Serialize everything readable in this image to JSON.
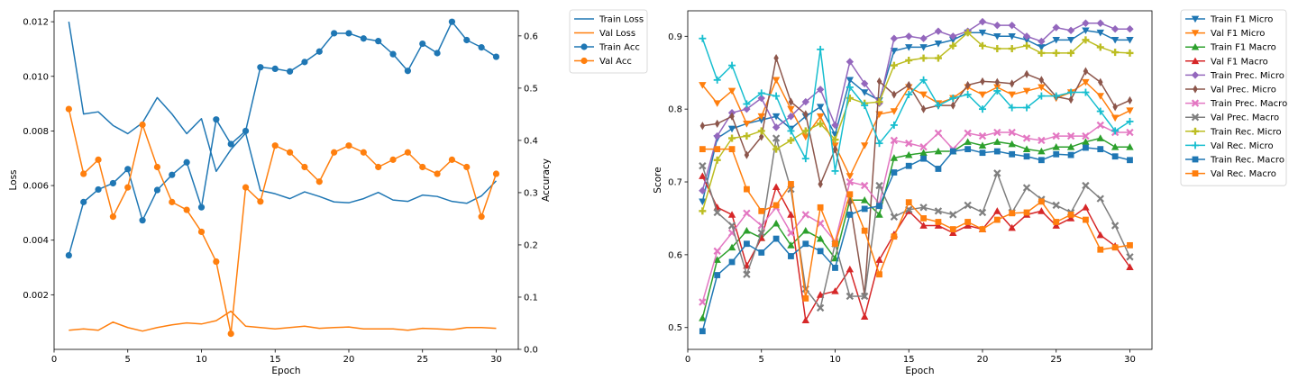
{
  "chart_data": [
    {
      "type": "line",
      "xlabel": "Epoch",
      "ylabel": "Loss",
      "ylabel_right": "Accuracy",
      "x": [
        1,
        2,
        3,
        4,
        5,
        6,
        7,
        8,
        9,
        10,
        11,
        12,
        13,
        14,
        15,
        16,
        17,
        18,
        19,
        20,
        21,
        22,
        23,
        24,
        25,
        26,
        27,
        28,
        29,
        30
      ],
      "xlim": [
        0,
        31.5
      ],
      "ylim": [
        0.0,
        0.0124
      ],
      "ylim_right": [
        0.0,
        0.648
      ],
      "xticks": [
        0,
        5,
        10,
        15,
        20,
        25,
        30
      ],
      "yticks": [
        0.002,
        0.004,
        0.006,
        0.008,
        0.01,
        0.012
      ],
      "ytick_labels": [
        "0.002",
        "0.004",
        "0.006",
        "0.008",
        "0.010",
        "0.012"
      ],
      "yticks_right": [
        0.0,
        0.1,
        0.2,
        0.3,
        0.4,
        0.5,
        0.6
      ],
      "ytick_labels_right": [
        "0.0",
        "0.1",
        "0.2",
        "0.3",
        "0.4",
        "0.5",
        "0.6"
      ],
      "legend_position": "outside right",
      "series": [
        {
          "name": "Train Loss",
          "axis": "left",
          "marker": "none",
          "color": "#1f77b4",
          "values": [
            0.012,
            0.00862,
            0.0087,
            0.0082,
            0.0079,
            0.0083,
            0.00922,
            0.00862,
            0.0079,
            0.00845,
            0.00652,
            0.00732,
            0.00792,
            0.00582,
            0.0057,
            0.00552,
            0.00577,
            0.0056,
            0.0054,
            0.00537,
            0.00552,
            0.00575,
            0.00547,
            0.00542,
            0.00565,
            0.0056,
            0.00542,
            0.00535,
            0.00562,
            0.00617
          ]
        },
        {
          "name": "Val Loss",
          "axis": "left",
          "marker": "none",
          "color": "#ff7f0e",
          "values": [
            0.0007,
            0.00075,
            0.0007,
            0.001,
            0.0008,
            0.00067,
            0.0008,
            0.0009,
            0.00097,
            0.00093,
            0.00105,
            0.0014,
            0.00085,
            0.0008,
            0.00075,
            0.0008,
            0.00085,
            0.00077,
            0.0008,
            0.00082,
            0.00075,
            0.00075,
            0.00075,
            0.0007,
            0.00077,
            0.00075,
            0.00072,
            0.0008,
            0.0008,
            0.00077
          ]
        },
        {
          "name": "Train Acc",
          "axis": "right",
          "marker": "circle",
          "color": "#1f77b4",
          "values": [
            0.18,
            0.282,
            0.306,
            0.318,
            0.345,
            0.247,
            0.305,
            0.334,
            0.358,
            0.272,
            0.44,
            0.393,
            0.418,
            0.54,
            0.537,
            0.532,
            0.55,
            0.57,
            0.605,
            0.605,
            0.595,
            0.59,
            0.565,
            0.533,
            0.585,
            0.567,
            0.627,
            0.592,
            0.578,
            0.56
          ]
        },
        {
          "name": "Val Acc",
          "axis": "right",
          "marker": "circle",
          "color": "#ff7f0e",
          "values": [
            0.46,
            0.336,
            0.363,
            0.254,
            0.31,
            0.43,
            0.349,
            0.282,
            0.267,
            0.225,
            0.168,
            0.03,
            0.31,
            0.283,
            0.39,
            0.377,
            0.349,
            0.321,
            0.377,
            0.39,
            0.377,
            0.349,
            0.363,
            0.377,
            0.349,
            0.336,
            0.363,
            0.349,
            0.254,
            0.336
          ]
        }
      ]
    },
    {
      "type": "line",
      "xlabel": "Epoch",
      "ylabel": "Score",
      "x": [
        1,
        2,
        3,
        4,
        5,
        6,
        7,
        8,
        9,
        10,
        11,
        12,
        13,
        14,
        15,
        16,
        17,
        18,
        19,
        20,
        21,
        22,
        23,
        24,
        25,
        26,
        27,
        28,
        29,
        30
      ],
      "xlim": [
        0,
        31.5
      ],
      "ylim": [
        0.47,
        0.935
      ],
      "xticks": [
        0,
        5,
        10,
        15,
        20,
        25,
        30
      ],
      "yticks": [
        0.5,
        0.6,
        0.7,
        0.8,
        0.9
      ],
      "ytick_labels": [
        "0.5",
        "0.6",
        "0.7",
        "0.8",
        "0.9"
      ],
      "legend_position": "outside right",
      "series": [
        {
          "name": "Train F1 Micro",
          "marker": "triangle-down",
          "color": "#1f77b4",
          "values": [
            0.673,
            0.76,
            0.773,
            0.78,
            0.785,
            0.79,
            0.773,
            0.79,
            0.803,
            0.765,
            0.84,
            0.823,
            0.812,
            0.88,
            0.885,
            0.885,
            0.89,
            0.895,
            0.905,
            0.905,
            0.9,
            0.9,
            0.895,
            0.885,
            0.895,
            0.895,
            0.908,
            0.905,
            0.895,
            0.895
          ]
        },
        {
          "name": "Val F1 Micro",
          "marker": "triangle-down",
          "color": "#ff7f0e",
          "values": [
            0.833,
            0.808,
            0.825,
            0.78,
            0.79,
            0.84,
            0.8,
            0.762,
            0.79,
            0.75,
            0.708,
            0.75,
            0.793,
            0.797,
            0.83,
            0.82,
            0.808,
            0.815,
            0.83,
            0.82,
            0.83,
            0.82,
            0.825,
            0.83,
            0.815,
            0.823,
            0.837,
            0.818,
            0.788,
            0.798
          ]
        },
        {
          "name": "Train F1 Macro",
          "marker": "triangle-up",
          "color": "#2ca02c",
          "values": [
            0.513,
            0.593,
            0.61,
            0.633,
            0.623,
            0.643,
            0.613,
            0.633,
            0.622,
            0.595,
            0.675,
            0.675,
            0.655,
            0.733,
            0.737,
            0.74,
            0.742,
            0.742,
            0.755,
            0.75,
            0.755,
            0.752,
            0.745,
            0.742,
            0.748,
            0.748,
            0.755,
            0.76,
            0.748,
            0.748
          ]
        },
        {
          "name": "Val F1 Macro",
          "marker": "triangle-up",
          "color": "#d62728",
          "values": [
            0.708,
            0.665,
            0.655,
            0.585,
            0.623,
            0.693,
            0.655,
            0.51,
            0.545,
            0.55,
            0.58,
            0.515,
            0.593,
            0.628,
            0.66,
            0.64,
            0.64,
            0.63,
            0.64,
            0.635,
            0.66,
            0.637,
            0.655,
            0.66,
            0.64,
            0.65,
            0.665,
            0.627,
            0.612,
            0.583
          ]
        },
        {
          "name": "Train Prec. Micro",
          "marker": "diamond",
          "color": "#9467bd",
          "values": [
            0.688,
            0.763,
            0.795,
            0.8,
            0.815,
            0.775,
            0.79,
            0.81,
            0.827,
            0.778,
            0.865,
            0.835,
            0.808,
            0.897,
            0.9,
            0.897,
            0.907,
            0.9,
            0.907,
            0.92,
            0.915,
            0.915,
            0.9,
            0.893,
            0.912,
            0.908,
            0.918,
            0.918,
            0.91,
            0.91
          ]
        },
        {
          "name": "Val Prec. Micro",
          "marker": "thin-diamond",
          "color": "#8c564b",
          "values": [
            0.777,
            0.78,
            0.79,
            0.737,
            0.762,
            0.87,
            0.81,
            0.793,
            0.697,
            0.745,
            0.672,
            0.545,
            0.838,
            0.82,
            0.833,
            0.8,
            0.805,
            0.805,
            0.833,
            0.838,
            0.837,
            0.835,
            0.848,
            0.84,
            0.817,
            0.813,
            0.852,
            0.837,
            0.803,
            0.812
          ]
        },
        {
          "name": "Train Prec. Macro",
          "marker": "x",
          "color": "#e377c2",
          "values": [
            0.535,
            0.605,
            0.63,
            0.657,
            0.64,
            0.665,
            0.63,
            0.655,
            0.643,
            0.618,
            0.7,
            0.695,
            0.67,
            0.757,
            0.753,
            0.748,
            0.767,
            0.745,
            0.767,
            0.763,
            0.768,
            0.768,
            0.76,
            0.757,
            0.763,
            0.763,
            0.763,
            0.778,
            0.768,
            0.768
          ]
        },
        {
          "name": "Val Prec. Macro",
          "marker": "x",
          "color": "#7f7f7f",
          "values": [
            0.722,
            0.658,
            0.64,
            0.573,
            0.63,
            0.76,
            0.69,
            0.553,
            0.527,
            0.615,
            0.543,
            0.543,
            0.695,
            0.652,
            0.662,
            0.665,
            0.66,
            0.655,
            0.668,
            0.658,
            0.712,
            0.658,
            0.692,
            0.676,
            0.668,
            0.658,
            0.695,
            0.677,
            0.64,
            0.597
          ]
        },
        {
          "name": "Train Rec. Micro",
          "marker": "plus-filled",
          "color": "#bcbd22",
          "values": [
            0.66,
            0.73,
            0.76,
            0.763,
            0.77,
            0.745,
            0.757,
            0.77,
            0.78,
            0.758,
            0.815,
            0.808,
            0.81,
            0.86,
            0.867,
            0.87,
            0.87,
            0.887,
            0.905,
            0.887,
            0.883,
            0.883,
            0.887,
            0.877,
            0.877,
            0.877,
            0.895,
            0.885,
            0.878,
            0.877
          ]
        },
        {
          "name": "Val Rec. Micro",
          "marker": "plus",
          "color": "#17becf",
          "values": [
            0.897,
            0.84,
            0.86,
            0.807,
            0.822,
            0.818,
            0.77,
            0.732,
            0.882,
            0.715,
            0.83,
            0.805,
            0.753,
            0.778,
            0.82,
            0.84,
            0.805,
            0.815,
            0.82,
            0.8,
            0.825,
            0.802,
            0.802,
            0.818,
            0.818,
            0.823,
            0.823,
            0.797,
            0.77,
            0.783
          ]
        },
        {
          "name": "Train Rec. Macro",
          "marker": "square",
          "color": "#1f77b4",
          "values": [
            0.495,
            0.572,
            0.59,
            0.615,
            0.603,
            0.622,
            0.598,
            0.615,
            0.605,
            0.582,
            0.655,
            0.663,
            0.667,
            0.713,
            0.722,
            0.732,
            0.718,
            0.742,
            0.745,
            0.74,
            0.742,
            0.738,
            0.735,
            0.73,
            0.738,
            0.737,
            0.747,
            0.745,
            0.735,
            0.73
          ]
        },
        {
          "name": "Val Rec. Macro",
          "marker": "square",
          "color": "#ff7f0e",
          "values": [
            0.745,
            0.745,
            0.745,
            0.69,
            0.66,
            0.668,
            0.697,
            0.54,
            0.665,
            0.615,
            0.683,
            0.633,
            0.573,
            0.625,
            0.672,
            0.65,
            0.645,
            0.635,
            0.645,
            0.635,
            0.648,
            0.657,
            0.658,
            0.673,
            0.645,
            0.655,
            0.648,
            0.607,
            0.61,
            0.613
          ]
        }
      ]
    }
  ]
}
